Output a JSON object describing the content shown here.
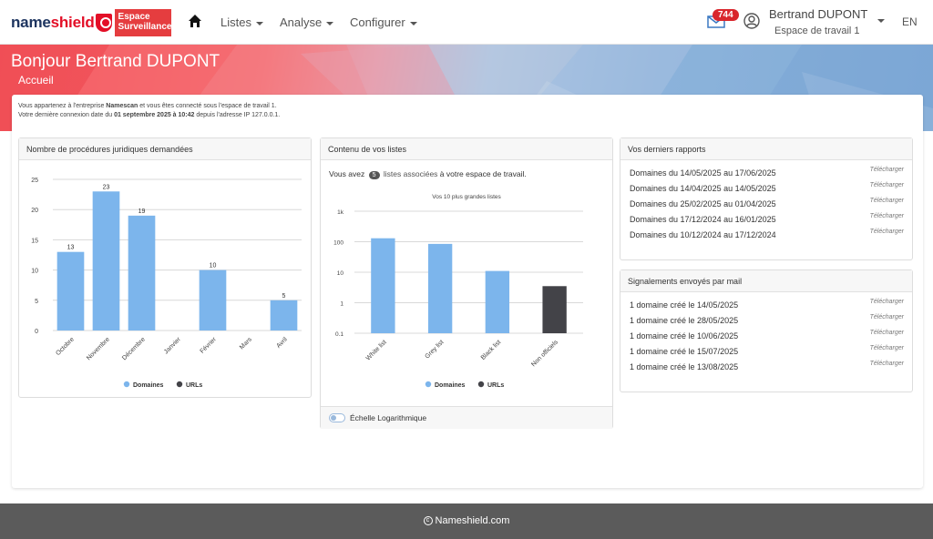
{
  "header": {
    "logo": {
      "name_part1": "name",
      "name_part2": "shield",
      "badge_line1": "Espace",
      "badge_line2": "Surveillances"
    },
    "nav": [
      {
        "label": "Listes"
      },
      {
        "label": "Analyse"
      },
      {
        "label": "Configurer"
      }
    ],
    "mail_count": "744",
    "user_name": "Bertrand DUPONT",
    "workspace": "Espace de travail 1",
    "lang": "EN"
  },
  "banner": {
    "greeting": "Bonjour Bertrand DUPONT",
    "breadcrumb": "Accueil"
  },
  "intro": {
    "line1_prefix": "Vous appartenez à l'entreprise ",
    "company": "Namescan",
    "line1_suffix": " et vous êtes connecté sous l'espace de travail 1.",
    "line2_prefix": "Votre dernière connexion date du ",
    "last_login": "01 septembre 2025 à 10:42",
    "line2_suffix": " depuis l'adresse IP 127.0.0.1."
  },
  "panels": {
    "procedures_title": "Nombre de procédures juridiques demandées",
    "lists_title": "Contenu de vos listes",
    "lists_text_prefix": "Vous avez",
    "lists_count": "5",
    "lists_text_link": "listes associées",
    "lists_text_suffix": "à votre espace de travail.",
    "log_scale_label": "Échelle Logarithmique",
    "reports_title": "Vos derniers rapports",
    "reports": [
      {
        "label": "Domaines du 14/05/2025 au 17/06/2025",
        "action": "Télécharger"
      },
      {
        "label": "Domaines du 14/04/2025 au 14/05/2025",
        "action": "Télécharger"
      },
      {
        "label": "Domaines du 25/02/2025 au 01/04/2025",
        "action": "Télécharger"
      },
      {
        "label": "Domaines du 17/12/2024 au 16/01/2025",
        "action": "Télécharger"
      },
      {
        "label": "Domaines du 10/12/2024 au 17/12/2024",
        "action": "Télécharger"
      }
    ],
    "signals_title": "Signalements envoyés par mail",
    "signals": [
      {
        "label": "1 domaine créé le 14/05/2025",
        "action": "Télécharger"
      },
      {
        "label": "1 domaine créé le 28/05/2025",
        "action": "Télécharger"
      },
      {
        "label": "1 domaine créé le 10/06/2025",
        "action": "Télécharger"
      },
      {
        "label": "1 domaine créé le 15/07/2025",
        "action": "Télécharger"
      },
      {
        "label": "1 domaine créé le 13/08/2025",
        "action": "Télécharger"
      }
    ]
  },
  "colors": {
    "domaines": "#7cb5ec",
    "urls": "#434348"
  },
  "chart_data": [
    {
      "type": "bar",
      "categories": [
        "Octobre",
        "Novembre",
        "Décembre",
        "Janvier",
        "Février",
        "Mars",
        "Avril"
      ],
      "series": [
        {
          "name": "Domaines",
          "values": [
            13,
            23,
            19,
            0,
            10,
            0,
            5
          ]
        },
        {
          "name": "URLs",
          "values": [
            0,
            0,
            0,
            0,
            0,
            0,
            0
          ]
        }
      ],
      "data_labels": [
        "13",
        "23",
        "19",
        "",
        "10",
        "",
        "5"
      ],
      "yticks": [
        "0",
        "5",
        "10",
        "15",
        "20",
        "25"
      ],
      "ylim": [
        0,
        25
      ],
      "legend": [
        "Domaines",
        "URLs"
      ]
    },
    {
      "type": "bar",
      "title": "Vos 10 plus grandes listes",
      "categories": [
        "White list",
        "Grey list",
        "Black list",
        "Non officiels"
      ],
      "series": [
        {
          "name": "Domaines",
          "values": [
            130,
            85,
            11,
            0
          ]
        },
        {
          "name": "URLs",
          "values": [
            0,
            0,
            0,
            3.5
          ]
        }
      ],
      "yscale": "log",
      "yticks": [
        "0.1",
        "1",
        "10",
        "100",
        "1k"
      ],
      "ylim": [
        0.1,
        1000
      ],
      "legend": [
        "Domaines",
        "URLs"
      ]
    }
  ],
  "footer": {
    "text": "Nameshield.com"
  }
}
